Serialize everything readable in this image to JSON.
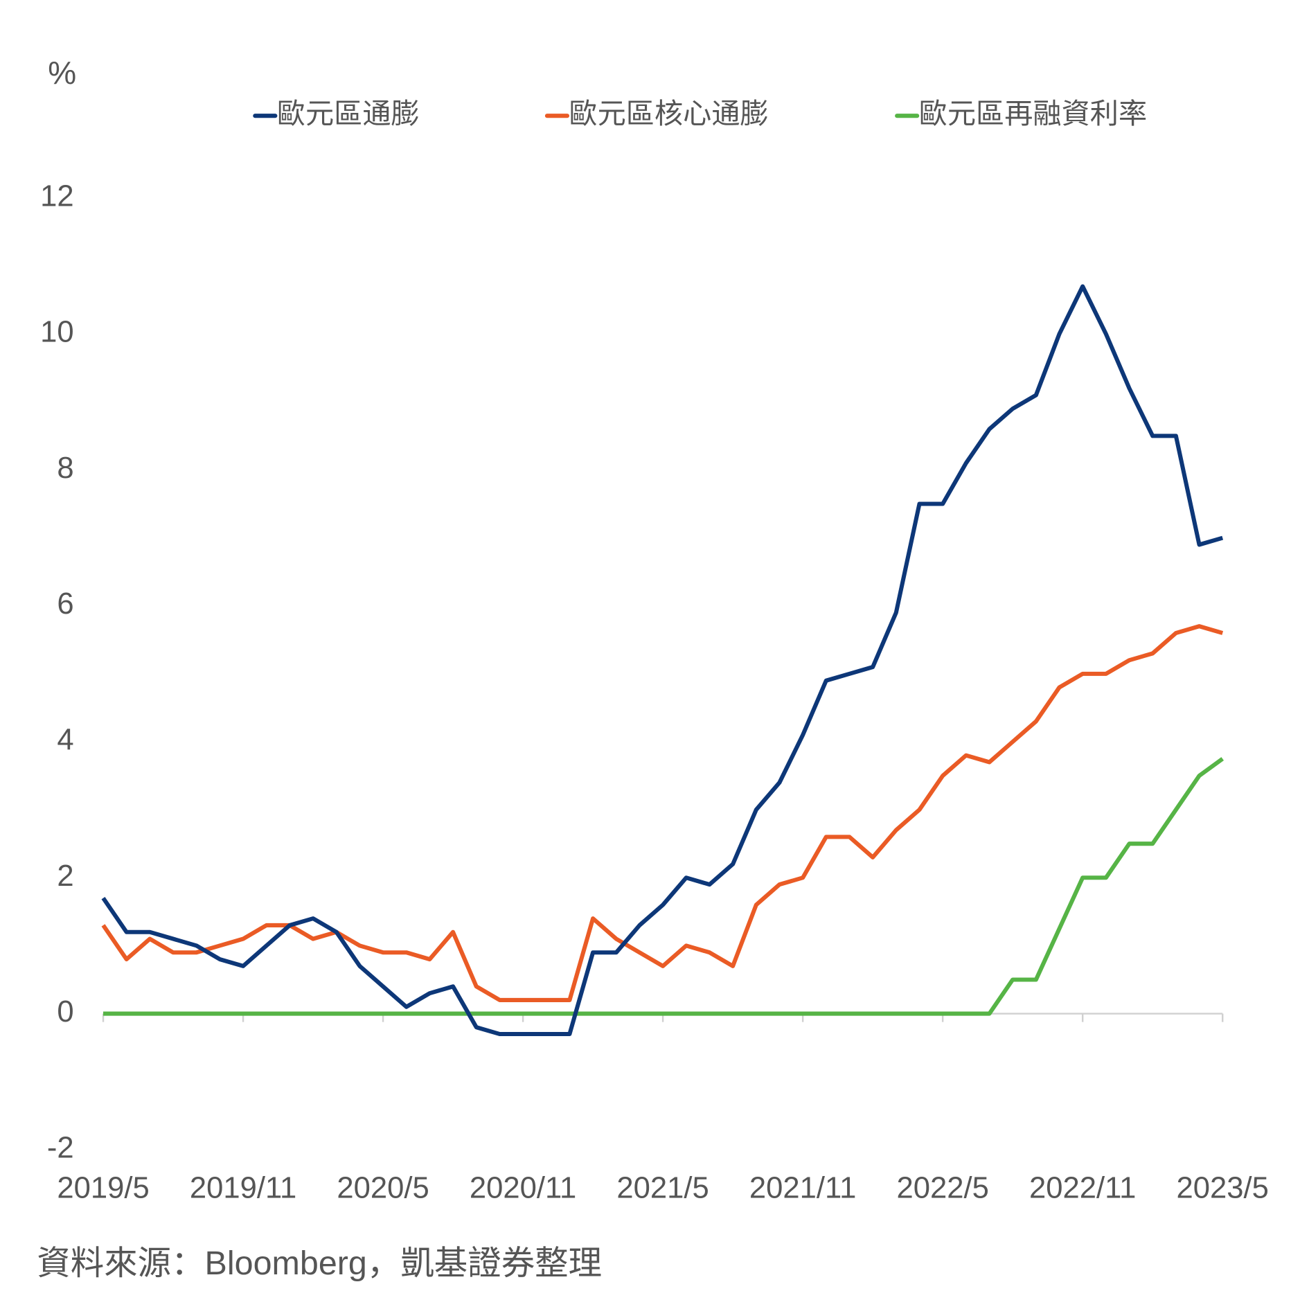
{
  "chart_data": {
    "type": "line",
    "y_label": "%",
    "source": "資料來源：Bloomberg，凱基證券整理",
    "categories": [
      "2019/5",
      null,
      null,
      null,
      null,
      null,
      "2019/11",
      null,
      null,
      null,
      null,
      null,
      "2020/5",
      null,
      null,
      null,
      null,
      null,
      "2020/11",
      null,
      null,
      null,
      null,
      null,
      "2021/5",
      null,
      null,
      null,
      null,
      null,
      "2021/11",
      null,
      null,
      null,
      null,
      null,
      "2022/5",
      null,
      null,
      null,
      null,
      null,
      "2022/11",
      null,
      null,
      null,
      null,
      null,
      "2023/5"
    ],
    "series": [
      {
        "name": "歐元區通膨",
        "color": "#0d3778",
        "values": [
          1.7,
          1.2,
          1.2,
          1.1,
          1.0,
          0.8,
          0.7,
          1.0,
          1.3,
          1.4,
          1.2,
          0.7,
          0.4,
          0.1,
          0.3,
          0.4,
          -0.2,
          -0.3,
          -0.3,
          -0.3,
          -0.3,
          0.9,
          0.9,
          1.3,
          1.6,
          2.0,
          1.9,
          2.2,
          3.0,
          3.4,
          4.1,
          4.9,
          5.0,
          5.1,
          5.9,
          7.5,
          7.5,
          8.1,
          8.6,
          8.9,
          9.1,
          10.0,
          10.7,
          10.0,
          9.2,
          8.5,
          8.5,
          6.9,
          7.0
        ]
      },
      {
        "name": "歐元區核心通膨",
        "color": "#ea5b25",
        "values": [
          1.3,
          0.8,
          1.1,
          0.9,
          0.9,
          1.0,
          1.1,
          1.3,
          1.3,
          1.1,
          1.2,
          1.0,
          0.9,
          0.9,
          0.8,
          1.2,
          0.4,
          0.2,
          0.2,
          0.2,
          0.2,
          1.4,
          1.1,
          0.9,
          0.7,
          1.0,
          0.9,
          0.7,
          1.6,
          1.9,
          2.0,
          2.6,
          2.6,
          2.3,
          2.7,
          3.0,
          3.5,
          3.8,
          3.7,
          4.0,
          4.3,
          4.8,
          5.0,
          5.0,
          5.2,
          5.3,
          5.6,
          5.7,
          5.6
        ]
      },
      {
        "name": "歐元區再融資利率",
        "color": "#56b446",
        "values": [
          0,
          0,
          0,
          0,
          0,
          0,
          0,
          0,
          0,
          0,
          0,
          0,
          0,
          0,
          0,
          0,
          0,
          0,
          0,
          0,
          0,
          0,
          0,
          0,
          0,
          0,
          0,
          0,
          0,
          0,
          0,
          0,
          0,
          0,
          0,
          0,
          0,
          0,
          0,
          0.5,
          0.5,
          1.25,
          2.0,
          2.0,
          2.5,
          2.5,
          3.0,
          3.5,
          3.75
        ]
      }
    ],
    "ylim": [
      -2,
      12
    ],
    "yticks": [
      -2,
      0,
      2,
      4,
      6,
      8,
      10,
      12
    ],
    "grid": false
  }
}
